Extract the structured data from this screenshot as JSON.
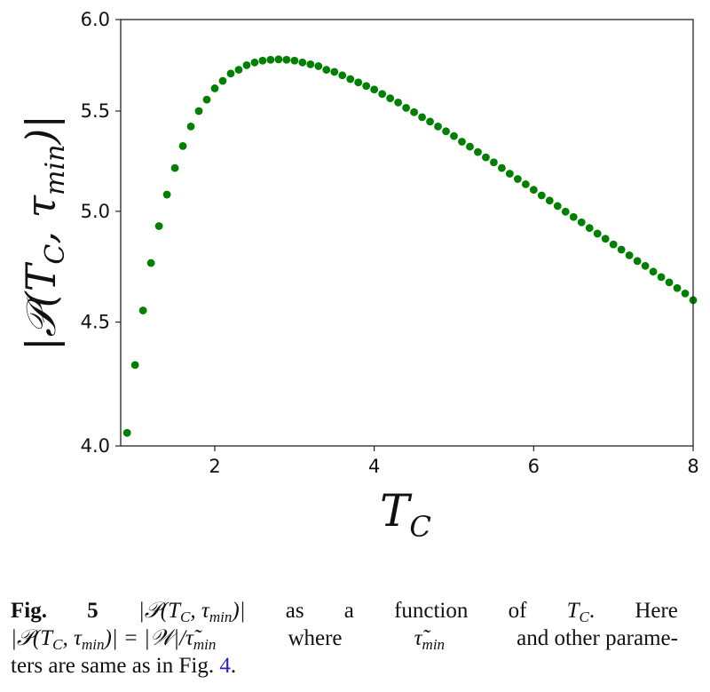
{
  "chart_data": {
    "type": "scatter",
    "title": "",
    "xlabel": "T_C",
    "ylabel": "|𝒫(T_C, τ_min)|",
    "xlabel_main": "T",
    "xlabel_sub": "C",
    "ylabel_parts": {
      "pre": "|𝒫(T",
      "sub1": "C",
      "mid": ", τ",
      "sub2": "min",
      "post": ")|"
    },
    "xlim": [
      0.82,
      8.0
    ],
    "ylim": [
      4.0,
      6.0
    ],
    "yscale": "log",
    "xticks": [
      2,
      4,
      6,
      8
    ],
    "xtick_labels": [
      "2",
      "4",
      "6",
      "8"
    ],
    "yticks": [
      4.0,
      4.5,
      5.0,
      5.5,
      6.0
    ],
    "ytick_labels": [
      "4.0",
      "4.5",
      "5.0",
      "5.5",
      "6.0"
    ],
    "grid": false,
    "marker_color": "#008000",
    "series": [
      {
        "name": "|P(T_C, tau_min)|",
        "x": [
          0.9,
          1.0,
          1.1,
          1.2,
          1.3,
          1.4,
          1.5,
          1.6,
          1.7,
          1.8,
          1.9,
          2.0,
          2.1,
          2.2,
          2.3,
          2.4,
          2.5,
          2.6,
          2.7,
          2.8,
          2.9,
          3.0,
          3.1,
          3.2,
          3.3,
          3.4,
          3.5,
          3.6,
          3.7,
          3.8,
          3.9,
          4.0,
          4.1,
          4.2,
          4.3,
          4.4,
          4.5,
          4.6,
          4.7,
          4.8,
          4.9,
          5.0,
          5.1,
          5.2,
          5.3,
          5.4,
          5.5,
          5.6,
          5.7,
          5.8,
          5.9,
          6.0,
          6.1,
          6.2,
          6.3,
          6.4,
          6.5,
          6.6,
          6.7,
          6.8,
          6.9,
          7.0,
          7.1,
          7.2,
          7.3,
          7.4,
          7.5,
          7.6,
          7.7,
          7.8,
          7.9,
          8.0
        ],
        "y": [
          4.05,
          4.32,
          4.55,
          4.76,
          4.93,
          5.08,
          5.21,
          5.32,
          5.42,
          5.5,
          5.56,
          5.62,
          5.66,
          5.7,
          5.72,
          5.745,
          5.76,
          5.77,
          5.775,
          5.777,
          5.775,
          5.77,
          5.76,
          5.75,
          5.74,
          5.72,
          5.709,
          5.69,
          5.67,
          5.652,
          5.633,
          5.614,
          5.59,
          5.567,
          5.545,
          5.517,
          5.494,
          5.468,
          5.445,
          5.42,
          5.395,
          5.371,
          5.342,
          5.317,
          5.29,
          5.263,
          5.238,
          5.21,
          5.182,
          5.156,
          5.13,
          5.103,
          5.076,
          5.051,
          5.025,
          4.998,
          4.973,
          4.948,
          4.921,
          4.895,
          4.871,
          4.845,
          4.821,
          4.795,
          4.769,
          4.747,
          4.721,
          4.697,
          4.673,
          4.648,
          4.624,
          4.595
        ]
      }
    ]
  },
  "caption": {
    "fig": "Fig.",
    "num": "5",
    "l1": [
      "|𝒫(T",
      "C",
      ", τ",
      "min",
      ")|",
      "as",
      "a",
      "function",
      "of",
      "T",
      "C",
      ".",
      "Here"
    ],
    "l2": [
      "|𝒫(T",
      "C",
      ", τ",
      "min",
      ")| = |𝒲|/τ̃",
      "min",
      "where",
      "τ̃",
      "min",
      "and other parame-"
    ],
    "l3": [
      "ters are same as in Fig.",
      "4",
      "."
    ]
  }
}
